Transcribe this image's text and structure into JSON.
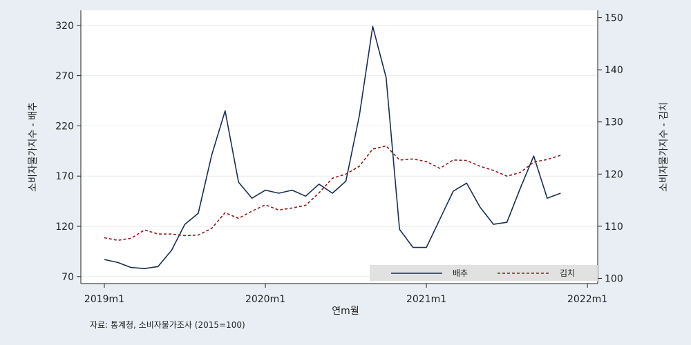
{
  "chart_data": {
    "type": "line",
    "xlabel": "연m월",
    "ylabel_left": "소비자물가지수 - 배추",
    "ylabel_right": "소비자물가지수 - 김치",
    "note": "자료: 통계청, 소비자물가조사 (2015=100)",
    "x_ticks": [
      "2019m1",
      "2020m1",
      "2021m1",
      "2022m1"
    ],
    "x": [
      "2019m1",
      "2019m2",
      "2019m3",
      "2019m4",
      "2019m5",
      "2019m6",
      "2019m7",
      "2019m8",
      "2019m9",
      "2019m10",
      "2019m11",
      "2019m12",
      "2020m1",
      "2020m2",
      "2020m3",
      "2020m4",
      "2020m5",
      "2020m6",
      "2020m7",
      "2020m8",
      "2020m9",
      "2020m10",
      "2020m11",
      "2020m12",
      "2021m1",
      "2021m2",
      "2021m3",
      "2021m4",
      "2021m5",
      "2021m6",
      "2021m7",
      "2021m8",
      "2021m9",
      "2021m10",
      "2021m11"
    ],
    "y_left_ticks": [
      70,
      120,
      170,
      220,
      270,
      320
    ],
    "y_left_range": [
      63,
      335
    ],
    "y_right_ticks": [
      100,
      110,
      120,
      130,
      140,
      150
    ],
    "y_right_range": [
      99,
      151.4
    ],
    "legend_position": "bottom-right",
    "grid": true,
    "series": [
      {
        "name": "배추",
        "axis": "left",
        "style": "solid",
        "color": "#1a2e4f",
        "values": [
          87,
          84,
          79,
          78,
          80,
          96,
          122,
          133,
          191,
          235,
          164,
          148,
          156,
          153,
          156,
          150,
          162,
          153,
          165,
          230,
          319,
          268,
          117,
          99,
          99,
          127,
          155,
          163,
          139,
          122,
          124,
          158,
          190,
          148,
          153
        ]
      },
      {
        "name": "김치",
        "axis": "left-right",
        "style": "dashed",
        "color": "#8b1a1a",
        "values": [
          107.8,
          107.3,
          107.7,
          109.3,
          108.5,
          108.5,
          108.2,
          108.3,
          109.6,
          112.6,
          111.5,
          112.9,
          114.1,
          113.1,
          113.5,
          114.0,
          116.4,
          119.2,
          120.0,
          121.5,
          124.8,
          125.4,
          122.7,
          122.9,
          122.4,
          121.1,
          122.7,
          122.6,
          121.5,
          120.7,
          119.6,
          120.3,
          122.3,
          122.8,
          123.6
        ]
      }
    ]
  }
}
